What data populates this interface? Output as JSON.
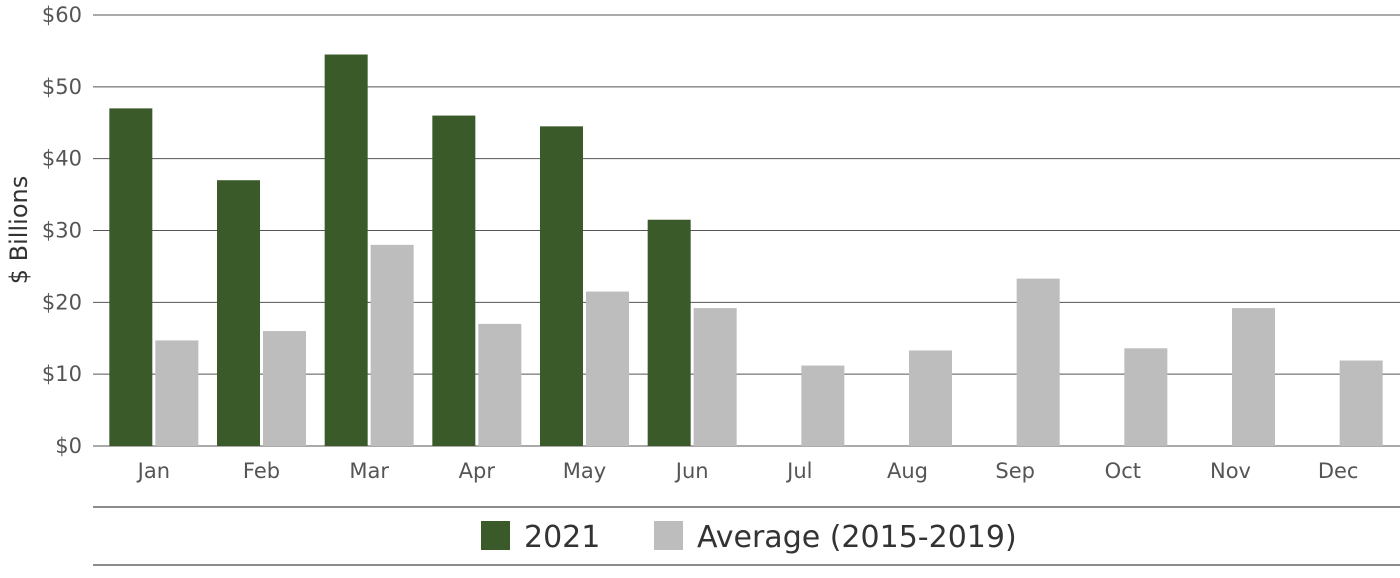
{
  "chart_data": {
    "type": "bar",
    "ylabel": "$ Billions",
    "xlabel": "",
    "categories": [
      "Jan",
      "Feb",
      "Mar",
      "Apr",
      "May",
      "Jun",
      "Jul",
      "Aug",
      "Sep",
      "Oct",
      "Nov",
      "Dec"
    ],
    "ylim": [
      0,
      60
    ],
    "yticks": [
      0,
      10,
      20,
      30,
      40,
      50,
      60
    ],
    "ytick_labels": [
      "$0",
      "$10",
      "$20",
      "$30",
      "$40",
      "$50",
      "$60"
    ],
    "grid": true,
    "legend_position": "bottom",
    "series": [
      {
        "name": "2021",
        "color": "#3b5a2a",
        "values": [
          47,
          37,
          54.5,
          46,
          44.5,
          31.5,
          null,
          null,
          null,
          null,
          null,
          null
        ]
      },
      {
        "name": "Average (2015-2019)",
        "color": "#bdbdbd",
        "values": [
          14.7,
          16,
          28,
          17,
          21.5,
          19.2,
          11.2,
          13.3,
          23.3,
          13.6,
          19.2,
          11.9
        ]
      }
    ]
  }
}
